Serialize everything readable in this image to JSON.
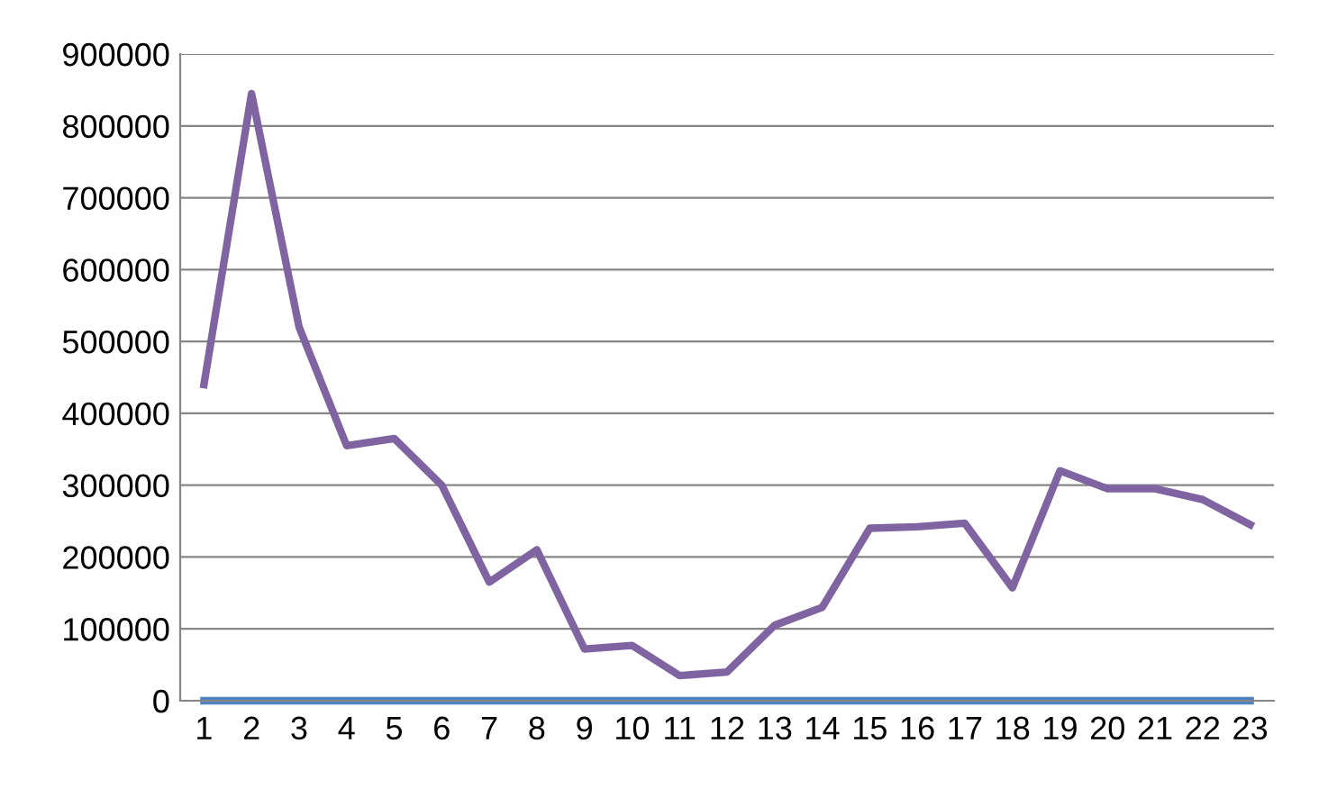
{
  "chart_data": {
    "type": "line",
    "categories": [
      "1",
      "2",
      "3",
      "4",
      "5",
      "6",
      "7",
      "8",
      "9",
      "10",
      "11",
      "12",
      "13",
      "14",
      "15",
      "16",
      "17",
      "18",
      "19",
      "20",
      "21",
      "22",
      "23"
    ],
    "series": [
      {
        "color": "#4f81bd",
        "values": [
          0,
          0,
          0,
          0,
          0,
          0,
          0,
          0,
          0,
          0,
          0,
          0,
          0,
          0,
          0,
          0,
          0,
          0,
          0,
          0,
          0,
          0,
          0
        ]
      },
      {
        "color": "#8064a2",
        "values": [
          440000,
          845000,
          520000,
          355000,
          365000,
          300000,
          165000,
          210000,
          72000,
          77000,
          35000,
          40000,
          105000,
          130000,
          240000,
          242000,
          247000,
          157000,
          320000,
          295000,
          295000,
          280000,
          245000
        ]
      }
    ],
    "ylim": [
      0,
      900000
    ],
    "yticks": [
      0,
      100000,
      200000,
      300000,
      400000,
      500000,
      600000,
      700000,
      800000,
      900000
    ],
    "grid": "y",
    "legend": false,
    "marker": "none",
    "line_style": "solid"
  }
}
